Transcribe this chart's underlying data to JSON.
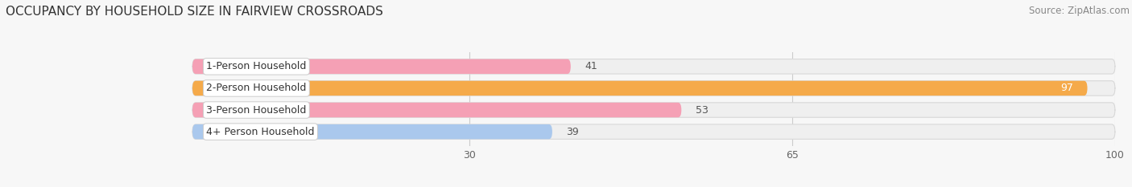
{
  "title": "OCCUPANCY BY HOUSEHOLD SIZE IN FAIRVIEW CROSSROADS",
  "source": "Source: ZipAtlas.com",
  "categories": [
    "1-Person Household",
    "2-Person Household",
    "3-Person Household",
    "4+ Person Household"
  ],
  "values": [
    41,
    97,
    53,
    39
  ],
  "bar_colors": [
    "#f5a0b5",
    "#f5aa4a",
    "#f5a0b5",
    "#aac8ed"
  ],
  "bar_bg_color": "#efefef",
  "xlim": [
    0,
    100
  ],
  "xticks": [
    30,
    65,
    100
  ],
  "value_label_color_inside": "#ffffff",
  "value_label_color_outside": "#555555",
  "title_fontsize": 11,
  "source_fontsize": 8.5,
  "label_fontsize": 9,
  "value_fontsize": 9,
  "tick_fontsize": 9,
  "background_color": "#f7f7f7"
}
